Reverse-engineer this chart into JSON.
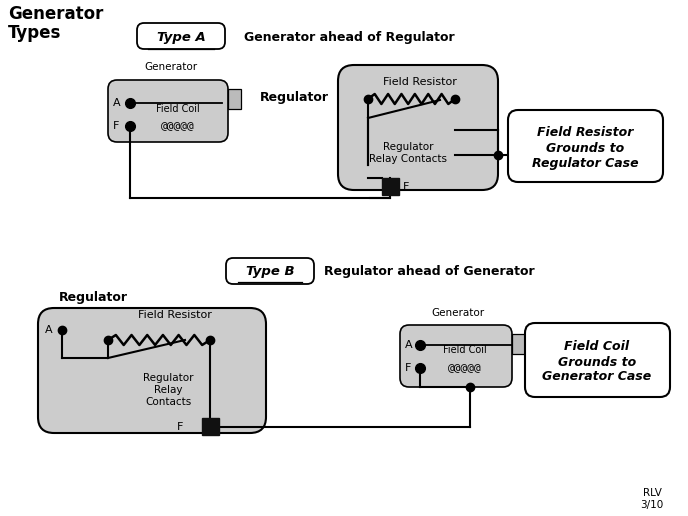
{
  "title": "Generator\nTypes",
  "typeA_label": "Type A",
  "typeB_label": "Type B",
  "typeA_subtitle": "Generator ahead of Regulator",
  "typeB_subtitle": "Regulator ahead of Generator",
  "regulator_label_A": "Regulator",
  "regulator_label_B": "Regulator",
  "generator_label_A": "Generator",
  "generator_label_B": "Generator",
  "field_resistor_label": "Field Resistor",
  "relay_contacts_label_A": "Regulator\nRelay Contacts",
  "relay_contacts_label_B": "Regulator\nRelay\nContacts",
  "field_coil_label": "Field Coil",
  "note_A": "Field Resistor\nGrounds to\nRegulator Case",
  "note_B": "Field Coil\nGrounds to\nGenerator Case",
  "coil_symbol": "@@@@@",
  "f_label": "F",
  "a_label": "A",
  "bg_color": "#ffffff",
  "box_fill": "#d0d0d0",
  "line_color": "#000000",
  "rlv_text": "RLV\n3/10"
}
